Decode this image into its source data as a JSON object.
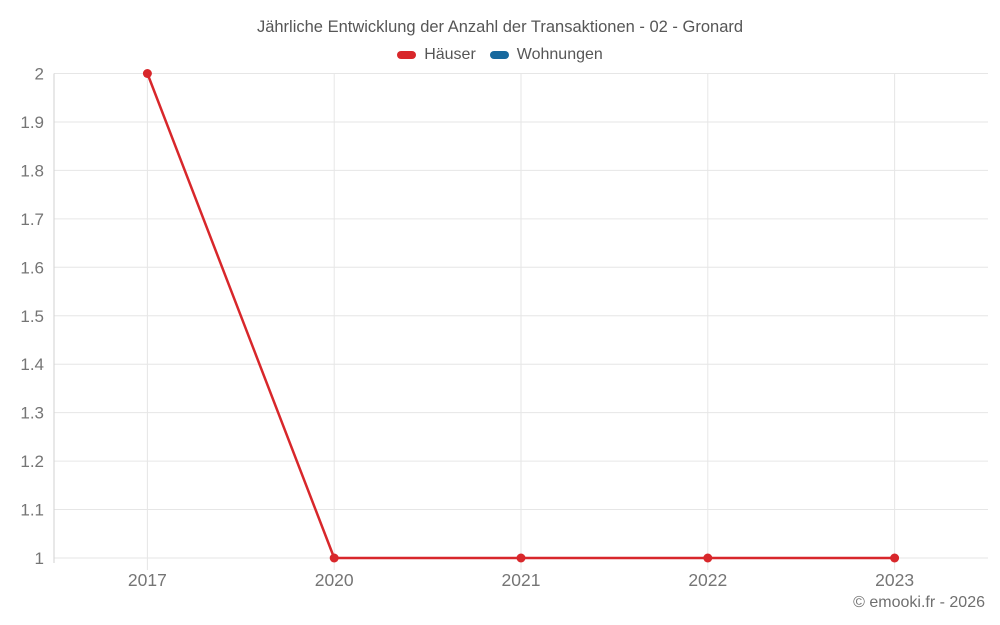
{
  "chart_data": {
    "type": "line",
    "title": "Jährliche Entwicklung der Anzahl der Transaktionen - 02 - Gronard",
    "categories": [
      "2017",
      "2020",
      "2021",
      "2022",
      "2023"
    ],
    "series": [
      {
        "name": "Häuser",
        "color": "#d8272b",
        "values": [
          2,
          1,
          1,
          1,
          1
        ]
      },
      {
        "name": "Wohnungen",
        "color": "#17699e",
        "values": []
      }
    ],
    "xlabel": "",
    "ylabel": "",
    "ylim": [
      1,
      2
    ],
    "ytick_step": 0.1,
    "ytick_labels": [
      "1",
      "1.1",
      "1.2",
      "1.3",
      "1.4",
      "1.5",
      "1.6",
      "1.7",
      "1.8",
      "1.9",
      "2"
    ],
    "grid": true,
    "legend_position": "top",
    "footer": "© emooki.fr - 2026",
    "colors": {
      "gridline": "#e6e6e6",
      "axis_line": "#d2d2d2",
      "tick_label": "#757575",
      "title_text": "#565656",
      "footer_text": "#6f6f6f",
      "background": "#ffffff"
    }
  }
}
